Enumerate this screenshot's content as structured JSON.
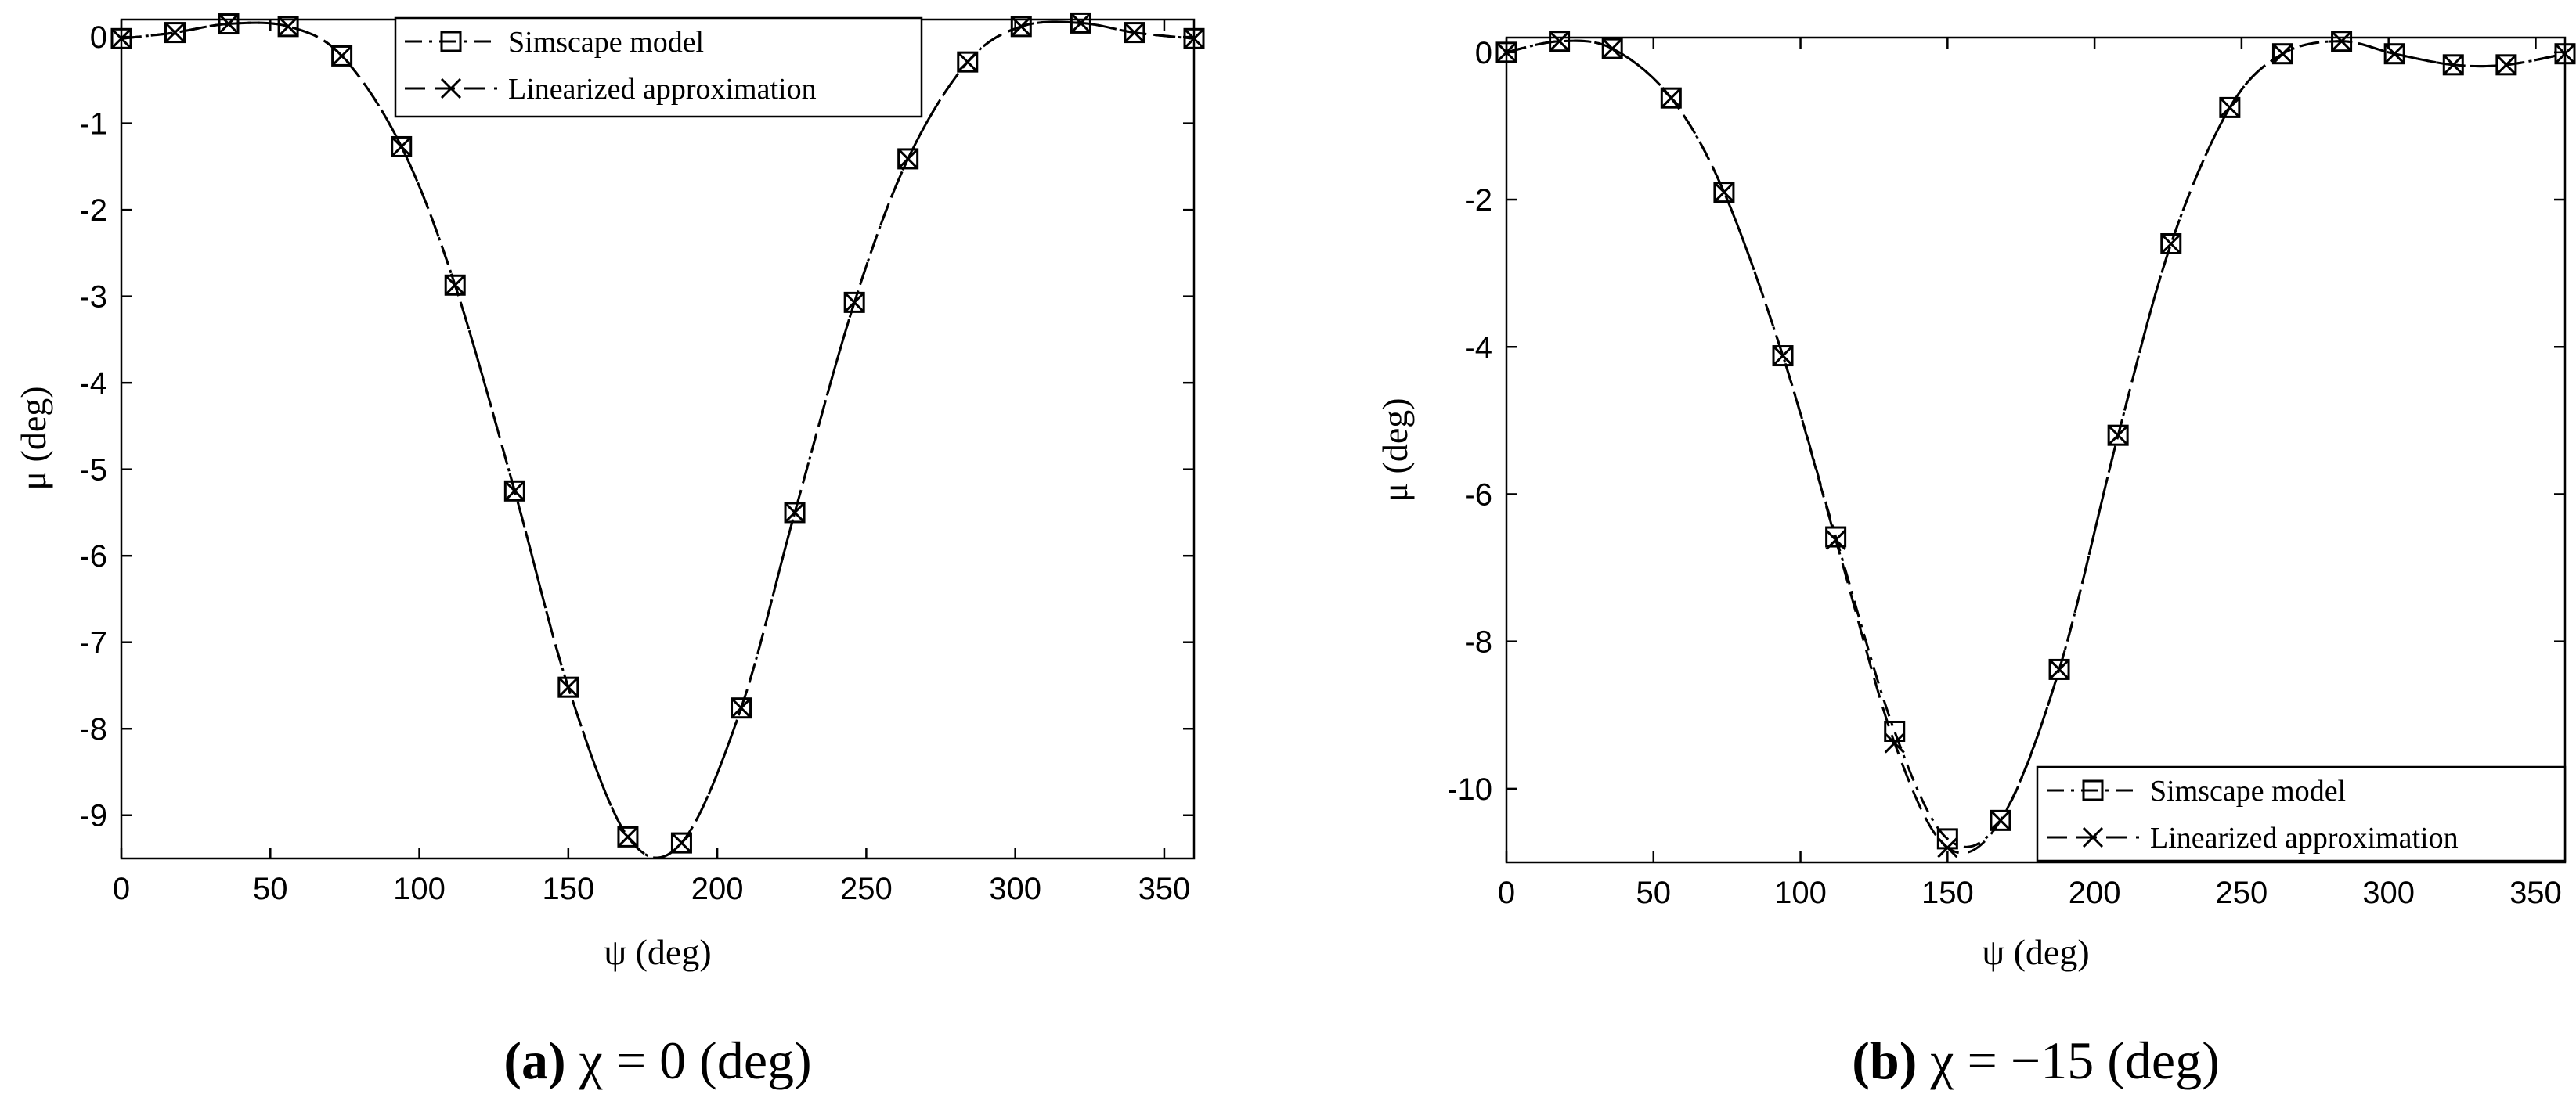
{
  "chart_data": [
    {
      "type": "line",
      "caption": {
        "letter": "(a)",
        "text": "χ = 0 (deg)"
      },
      "xlabel": "ψ (deg)",
      "ylabel": "μ (deg)",
      "xlim": [
        0,
        360
      ],
      "ylim": [
        -9.5,
        0.2
      ],
      "xticks": [
        0,
        50,
        100,
        150,
        200,
        250,
        300,
        350
      ],
      "xtick_labels": [
        "0",
        "50",
        "100",
        "150",
        "200",
        "250",
        "300",
        "350"
      ],
      "yticks": [
        0,
        -1,
        -2,
        -3,
        -4,
        -5,
        -6,
        -7,
        -8,
        -9
      ],
      "ytick_labels": [
        "0",
        "-1",
        "-2",
        "-3",
        "-4",
        "-5",
        "-6",
        "-7",
        "-8",
        "-9"
      ],
      "legend_position": "top-center",
      "series": [
        {
          "name": "Simscape model",
          "marker": "square",
          "line_style": "dash-dot",
          "x": [
            0,
            18,
            36,
            56,
            74,
            94,
            112,
            132,
            150,
            170,
            188,
            208,
            226,
            246,
            264,
            284,
            302,
            322,
            340,
            360
          ],
          "y": [
            -0.02,
            0.05,
            0.15,
            0.12,
            -0.22,
            -1.27,
            -2.87,
            -5.25,
            -7.52,
            -9.25,
            -9.32,
            -7.76,
            -5.5,
            -3.07,
            -1.41,
            -0.29,
            0.12,
            0.16,
            0.05,
            -0.02
          ]
        },
        {
          "name": "Linearized approximation",
          "marker": "cross",
          "line_style": "dashed",
          "x": [
            0,
            18,
            36,
            56,
            74,
            94,
            112,
            132,
            150,
            170,
            188,
            208,
            226,
            246,
            264,
            284,
            302,
            322,
            340,
            360
          ],
          "y": [
            -0.02,
            0.05,
            0.15,
            0.12,
            -0.22,
            -1.27,
            -2.87,
            -5.25,
            -7.52,
            -9.25,
            -9.32,
            -7.76,
            -5.5,
            -3.07,
            -1.41,
            -0.29,
            0.12,
            0.16,
            0.05,
            -0.02
          ]
        }
      ]
    },
    {
      "type": "line",
      "caption": {
        "letter": "(b)",
        "text": "χ = −15 (deg)"
      },
      "xlabel": "ψ (deg)",
      "ylabel": "μ (deg)",
      "xlim": [
        0,
        360
      ],
      "ylim": [
        -11,
        0.2
      ],
      "xticks": [
        0,
        50,
        100,
        150,
        200,
        250,
        300,
        350
      ],
      "xtick_labels": [
        "0",
        "50",
        "100",
        "150",
        "200",
        "250",
        "300",
        "350"
      ],
      "yticks": [
        0,
        -2,
        -4,
        -6,
        -8,
        -10
      ],
      "ytick_labels": [
        "0",
        "-2",
        "-4",
        "-6",
        "-8",
        "-10"
      ],
      "legend_position": "bottom-right",
      "series": [
        {
          "name": "Simscape model",
          "marker": "square",
          "line_style": "dash-dot",
          "x": [
            0,
            18,
            36,
            56,
            74,
            94,
            112,
            132,
            150,
            168,
            188,
            208,
            226,
            246,
            264,
            284,
            302,
            322,
            340,
            360
          ],
          "y": [
            0,
            0.15,
            0.05,
            -0.62,
            -1.9,
            -4.12,
            -6.58,
            -9.22,
            -10.68,
            -10.43,
            -8.38,
            -5.2,
            -2.6,
            -0.75,
            -0.02,
            0.15,
            -0.02,
            -0.17,
            -0.17,
            -0.02
          ]
        },
        {
          "name": "Linearized approximation",
          "marker": "cross",
          "line_style": "dashed",
          "x": [
            0,
            18,
            36,
            56,
            74,
            94,
            112,
            132,
            150,
            168,
            188,
            208,
            226,
            246,
            264,
            284,
            302,
            322,
            340,
            360
          ],
          "y": [
            0,
            0.15,
            0.05,
            -0.62,
            -1.9,
            -4.12,
            -6.62,
            -9.38,
            -10.8,
            -10.43,
            -8.38,
            -5.2,
            -2.6,
            -0.75,
            -0.02,
            0.15,
            -0.02,
            -0.17,
            -0.17,
            -0.02
          ]
        }
      ]
    }
  ]
}
